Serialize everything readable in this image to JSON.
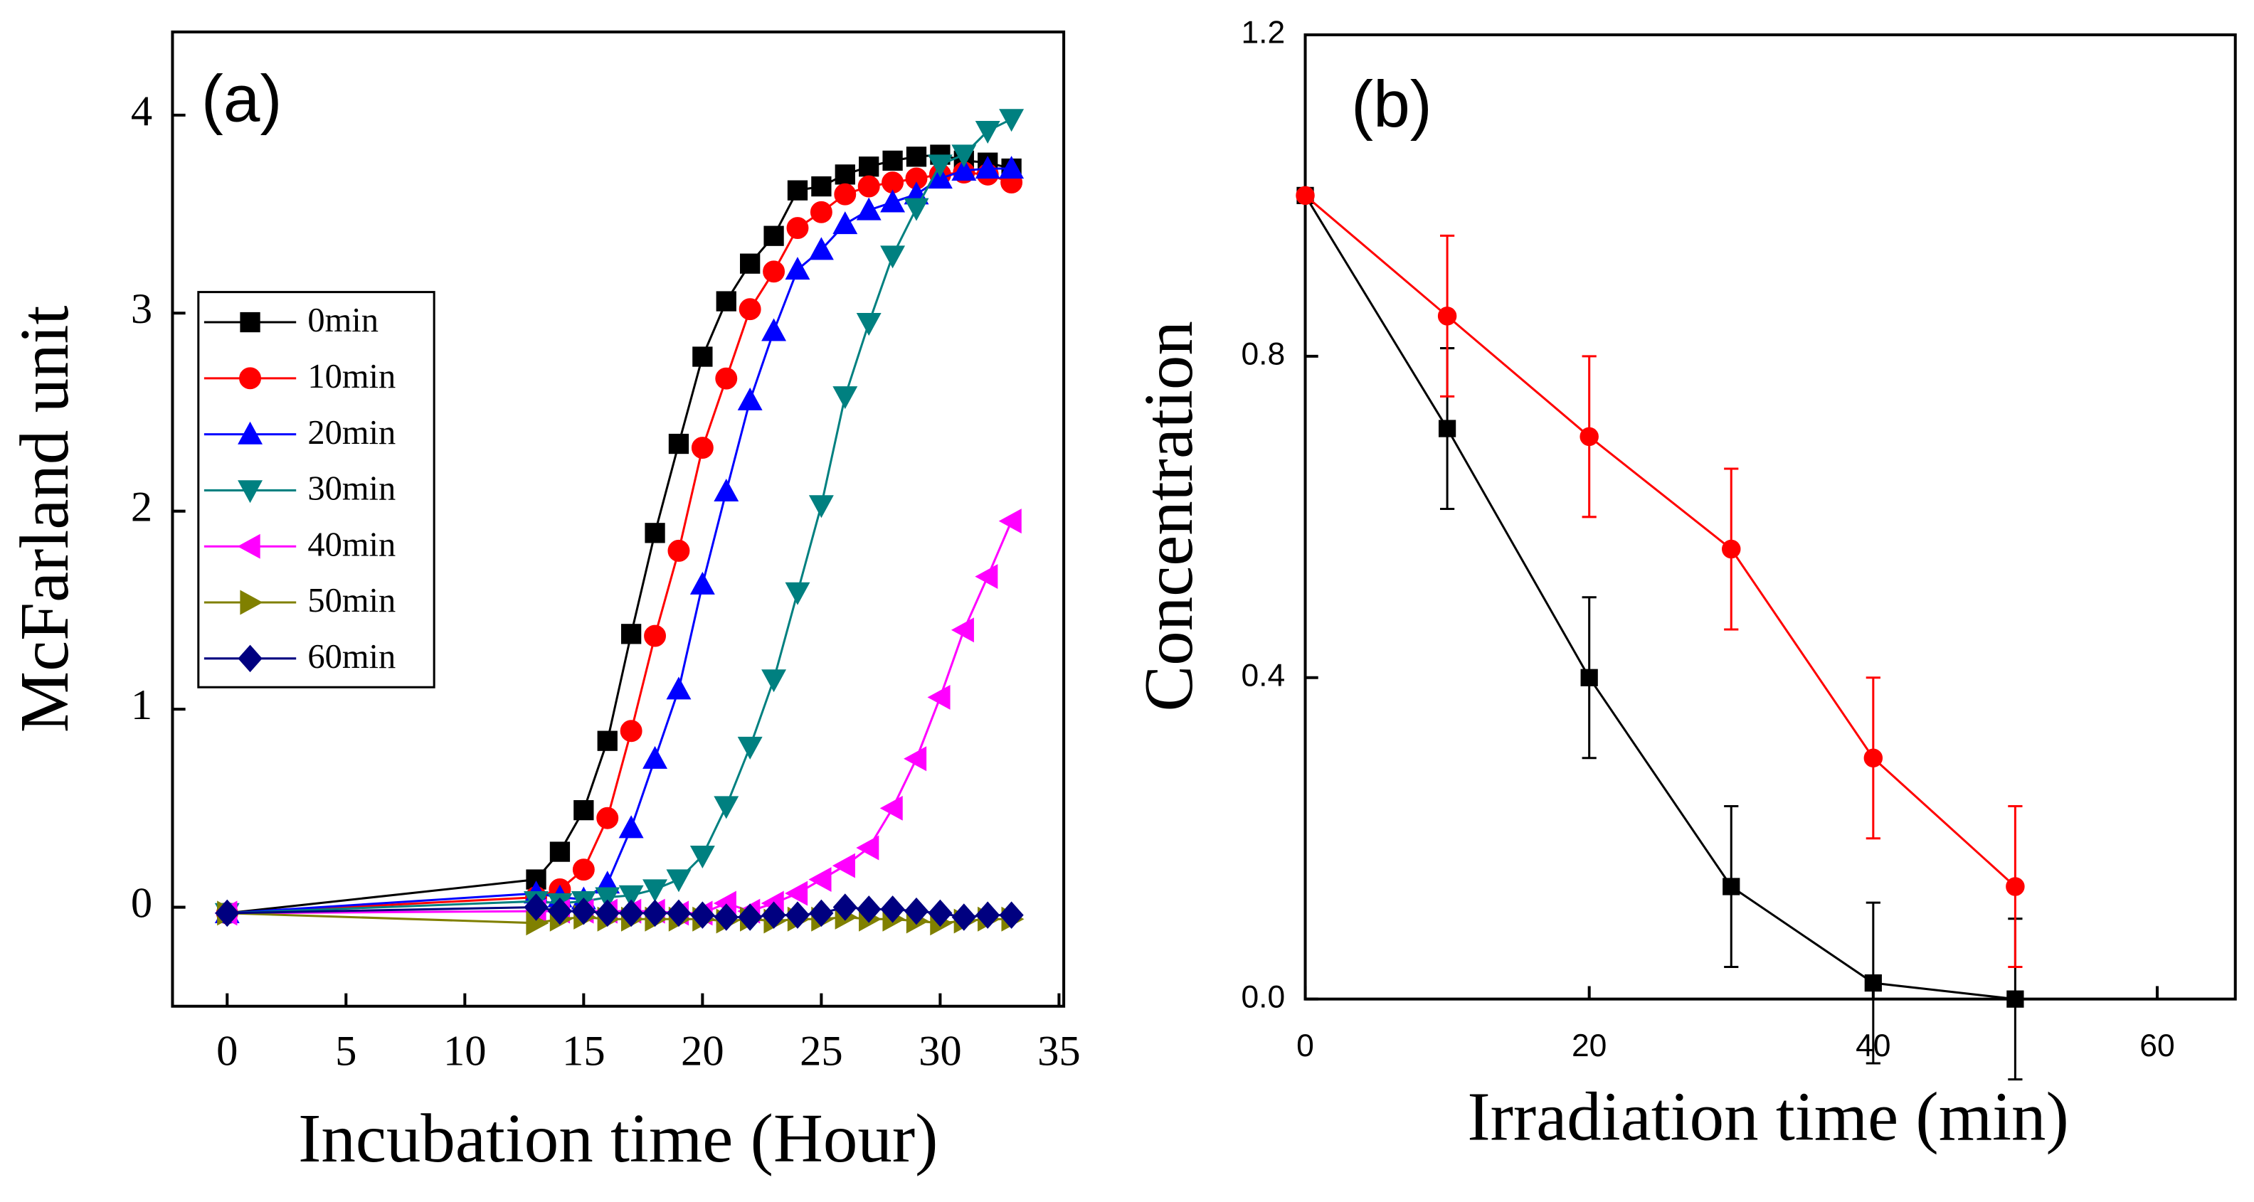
{
  "chart_data": [
    {
      "type": "line",
      "annotation": "(a)",
      "xlabel": "Incubation time (Hour)",
      "ylabel": "McFarland unit",
      "x": [
        0,
        13,
        14,
        15,
        16,
        17,
        18,
        19,
        20,
        21,
        22,
        23,
        24,
        25,
        26,
        27,
        28,
        29,
        30,
        31,
        32,
        33
      ],
      "xlim": [
        -2.3,
        35.2
      ],
      "xticks": [
        0,
        5,
        10,
        15,
        20,
        25,
        30,
        35
      ],
      "ylim": [
        -0.5,
        4.42
      ],
      "yticks": [
        0,
        1,
        2,
        3,
        4
      ],
      "legend": "upper-left",
      "series": [
        {
          "name": "0min",
          "color": "#000000",
          "marker": "square",
          "values": [
            -0.03,
            0.14,
            0.28,
            0.49,
            0.84,
            1.38,
            1.89,
            2.34,
            2.78,
            3.06,
            3.25,
            3.39,
            3.62,
            3.64,
            3.7,
            3.74,
            3.77,
            3.79,
            3.8,
            3.77,
            3.76,
            3.73
          ]
        },
        {
          "name": "10min",
          "color": "#ff0000",
          "marker": "circle",
          "values": [
            -0.03,
            0.05,
            0.09,
            0.19,
            0.45,
            0.89,
            1.37,
            1.8,
            2.32,
            2.67,
            3.02,
            3.21,
            3.43,
            3.51,
            3.6,
            3.64,
            3.66,
            3.68,
            3.7,
            3.71,
            3.7,
            3.66
          ]
        },
        {
          "name": "20min",
          "color": "#0000ff",
          "marker": "triangle-up",
          "values": [
            -0.03,
            0.07,
            0.05,
            0.04,
            0.12,
            0.4,
            0.75,
            1.1,
            1.63,
            2.1,
            2.56,
            2.91,
            3.22,
            3.32,
            3.45,
            3.52,
            3.56,
            3.6,
            3.68,
            3.72,
            3.73,
            3.73
          ]
        },
        {
          "name": "30min",
          "color": "#008080",
          "marker": "triangle-down",
          "values": [
            -0.03,
            0.03,
            0.02,
            0.03,
            0.05,
            0.06,
            0.09,
            0.14,
            0.26,
            0.51,
            0.81,
            1.15,
            1.59,
            2.03,
            2.58,
            2.95,
            3.29,
            3.53,
            3.75,
            3.8,
            3.92,
            3.98
          ]
        },
        {
          "name": "40min",
          "color": "#ff00ff",
          "marker": "triangle-left",
          "values": [
            -0.03,
            -0.02,
            -0.02,
            -0.02,
            -0.02,
            -0.02,
            -0.02,
            -0.03,
            -0.03,
            0.02,
            -0.02,
            0.02,
            0.07,
            0.14,
            0.21,
            0.3,
            0.5,
            0.75,
            1.06,
            1.4,
            1.67,
            1.95
          ]
        },
        {
          "name": "50min",
          "color": "#808000",
          "marker": "triangle-right",
          "values": [
            -0.03,
            -0.08,
            -0.06,
            -0.05,
            -0.06,
            -0.06,
            -0.06,
            -0.06,
            -0.06,
            -0.07,
            -0.06,
            -0.07,
            -0.06,
            -0.06,
            -0.05,
            -0.06,
            -0.06,
            -0.07,
            -0.08,
            -0.07,
            -0.06,
            -0.06
          ]
        },
        {
          "name": "60min",
          "color": "#000080",
          "marker": "diamond",
          "values": [
            -0.03,
            0.0,
            -0.02,
            -0.02,
            -0.03,
            -0.03,
            -0.03,
            -0.03,
            -0.04,
            -0.05,
            -0.05,
            -0.04,
            -0.04,
            -0.03,
            0.0,
            -0.01,
            -0.01,
            -0.02,
            -0.03,
            -0.05,
            -0.04,
            -0.04
          ]
        }
      ]
    },
    {
      "type": "line",
      "annotation": "(b)",
      "xlabel": "Irradiation time (min)",
      "ylabel": "Concentration",
      "x": [
        0,
        10,
        20,
        30,
        40,
        50
      ],
      "xlim": [
        0,
        65.5
      ],
      "xticks": [
        0,
        20,
        40,
        60
      ],
      "ylim": [
        0,
        1.2
      ],
      "yticks": [
        {
          "value": 0,
          "label": "0.0"
        },
        0.4,
        0.8,
        1.2
      ],
      "series": [
        {
          "color": "#000000",
          "marker": "square",
          "values": [
            1.0,
            0.71,
            0.4,
            0.14,
            0.02,
            0.0
          ],
          "errors": [
            0,
            0.1,
            0.1,
            0.1,
            0.1,
            0.1
          ]
        },
        {
          "color": "#ff0000",
          "marker": "circle",
          "values": [
            1.0,
            0.85,
            0.7,
            0.56,
            0.3,
            0.14
          ],
          "errors": [
            0,
            0.1,
            0.1,
            0.1,
            0.1,
            0.1
          ]
        }
      ]
    }
  ]
}
